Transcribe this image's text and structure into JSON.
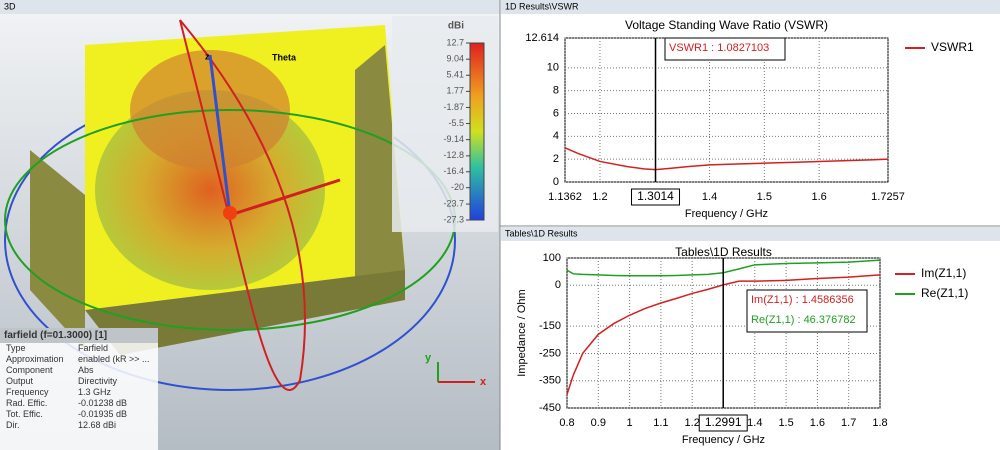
{
  "view3d": {
    "panel_title": "3D",
    "theta_label": "Theta",
    "axis_z": "z",
    "axis_x": "x",
    "axis_y": "y",
    "colorbar": {
      "unit": "dBi",
      "ticks": [
        12.7,
        9.04,
        5.41,
        1.77,
        -1.87,
        -5.5,
        -9.14,
        -12.8,
        -16.4,
        -20,
        -23.7,
        -27.3
      ]
    },
    "info": {
      "title": "farfield (f=01.3000) [1]",
      "rows": [
        [
          "Type",
          "Farfield"
        ],
        [
          "Approximation",
          "enabled (kR >> ..."
        ],
        [
          "Component",
          "Abs"
        ],
        [
          "Output",
          "Directivity"
        ],
        [
          "Frequency",
          "1.3 GHz"
        ],
        [
          "Rad. Effic.",
          "-0.01238 dB"
        ],
        [
          "Tot. Effic.",
          "-0.01935 dB"
        ],
        [
          "Dir.",
          "12.68 dBi"
        ]
      ]
    }
  },
  "chart_data": [
    {
      "type": "line",
      "panel_title": "1D Results\\VSWR",
      "title": "Voltage Standing Wave Ratio (VSWR)",
      "x_label": "Frequency / GHz",
      "x": [
        1.1362,
        1.16,
        1.2,
        1.25,
        1.28,
        1.3014,
        1.33,
        1.36,
        1.4,
        1.45,
        1.5,
        1.55,
        1.6,
        1.65,
        1.7,
        1.7257
      ],
      "series": [
        {
          "name": "VSWR1",
          "color": "#d42020",
          "values": [
            3.0,
            2.5,
            1.8,
            1.35,
            1.15,
            1.08,
            1.2,
            1.35,
            1.5,
            1.58,
            1.65,
            1.72,
            1.8,
            1.87,
            1.95,
            2.0
          ]
        }
      ],
      "xlim": [
        1.1362,
        1.7257
      ],
      "xticks": [
        1.1362,
        1.2,
        1.4,
        1.5,
        1.6,
        1.7257
      ],
      "ylim": [
        0,
        12.614
      ],
      "yticks": [
        0,
        2,
        4,
        6,
        8,
        10,
        12.614
      ],
      "grid": true,
      "marker_x": 1.3014,
      "annotations": [
        {
          "text": "VSWR1 : 1.0827103",
          "color": "#d42020"
        }
      ]
    },
    {
      "type": "line",
      "panel_title": "Tables\\1D Results",
      "title": "Tables\\1D Results",
      "x_label": "Frequency / GHz",
      "y_label": "Impedance / Ohm",
      "x": [
        0.8,
        0.82,
        0.85,
        0.9,
        0.95,
        1.0,
        1.05,
        1.1,
        1.15,
        1.2,
        1.25,
        1.2991,
        1.35,
        1.4,
        1.5,
        1.6,
        1.7,
        1.8
      ],
      "series": [
        {
          "name": "Im(Z1,1)",
          "color": "#d42020",
          "values": [
            -400,
            -330,
            -250,
            -180,
            -140,
            -110,
            -85,
            -65,
            -48,
            -30,
            -15,
            1.5,
            15,
            15,
            18,
            25,
            30,
            38
          ]
        },
        {
          "name": "Re(Z1,1)",
          "color": "#20a020",
          "values": [
            55,
            42,
            40,
            38,
            36,
            35,
            35,
            35,
            36,
            38,
            40,
            46,
            60,
            75,
            80,
            82,
            85,
            92
          ]
        }
      ],
      "xlim": [
        0.8,
        1.8
      ],
      "xticks": [
        0.8,
        0.9,
        1,
        1.1,
        1.2,
        1.4,
        1.5,
        1.6,
        1.7,
        1.8
      ],
      "ylim": [
        -450,
        100
      ],
      "yticks": [
        100,
        0,
        -150,
        -250,
        -350,
        -450
      ],
      "grid": true,
      "marker_x": 1.2991,
      "annotations": [
        {
          "text": "Im(Z1,1) : 1.4586356",
          "color": "#d42020"
        },
        {
          "text": "Re(Z1,1) : 46.376782",
          "color": "#20a020"
        }
      ]
    }
  ]
}
